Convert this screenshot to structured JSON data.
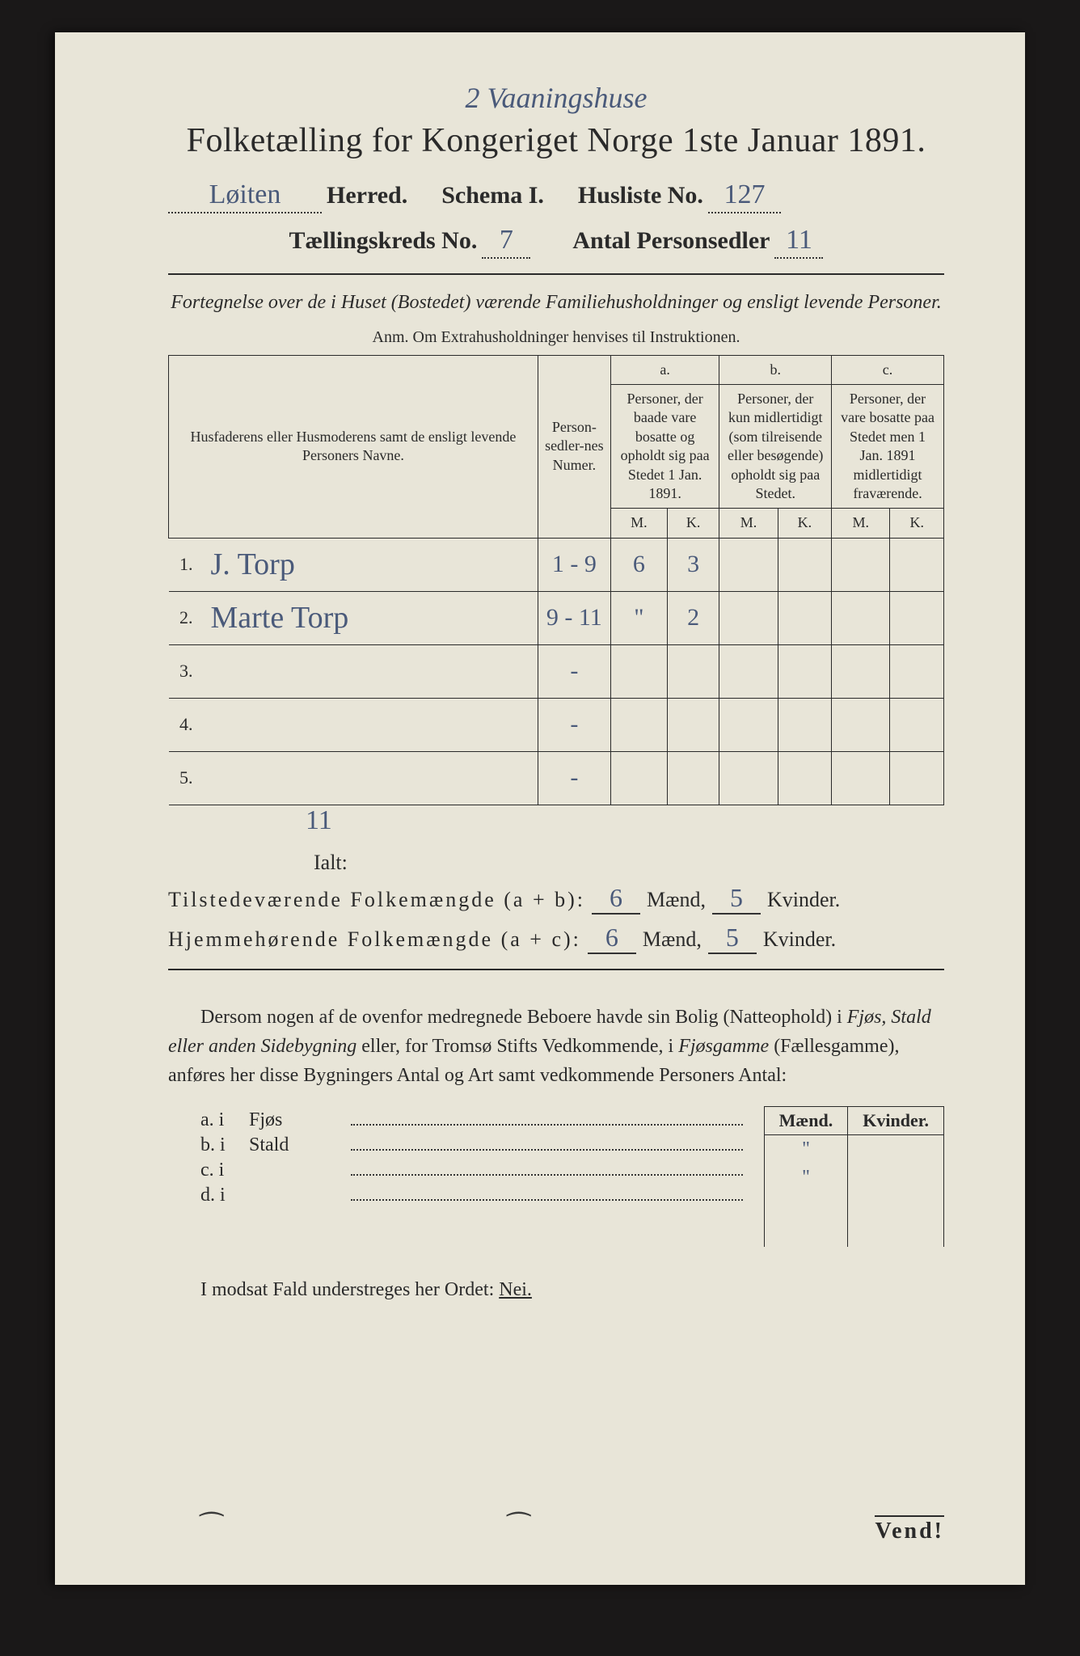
{
  "colors": {
    "paper": "#e8e5d8",
    "ink_print": "#2a2a2a",
    "ink_handwritten": "#4a5a7a",
    "background": "#1a1818"
  },
  "typography": {
    "printed_font": "Georgia serif",
    "handwritten_font": "Brush Script MT cursive",
    "title_size_pt": 42,
    "meta_size_pt": 30,
    "table_header_size_pt": 18,
    "body_size_pt": 24
  },
  "handwritten_top": "2 Vaaningshuse",
  "title": "Folketælling for Kongeriget Norge 1ste Januar 1891.",
  "meta": {
    "herred_value": "Løiten",
    "herred_label": "Herred.",
    "schema_label": "Schema I.",
    "husliste_label": "Husliste No.",
    "husliste_value": "127",
    "kreds_label": "Tællingskreds No.",
    "kreds_value": "7",
    "antal_label": "Antal Personsedler",
    "antal_value": "11"
  },
  "intro_text": "Fortegnelse over de i Huset (Bostedet) værende Familiehusholdninger og ensligt levende Personer.",
  "anm_text": "Anm. Om Extrahusholdninger henvises til Instruktionen.",
  "table": {
    "head_name": "Husfaderens eller Husmoderens samt de ensligt levende Personers Navne.",
    "head_numer": "Person-sedler-nes Numer.",
    "head_a_top": "a.",
    "head_a": "Personer, der baade vare bosatte og opholdt sig paa Stedet 1 Jan. 1891.",
    "head_b_top": "b.",
    "head_b": "Personer, der kun midlertidigt (som tilreisende eller besøgende) opholdt sig paa Stedet.",
    "head_c_top": "c.",
    "head_c": "Personer, der vare bosatte paa Stedet men 1 Jan. 1891 midlertidigt fraværende.",
    "m_label": "M.",
    "k_label": "K.",
    "rows": [
      {
        "n": "1.",
        "name": "J. Torp",
        "numer": "1 - 9",
        "am": "6",
        "ak": "3",
        "bm": "",
        "bk": "",
        "cm": "",
        "ck": ""
      },
      {
        "n": "2.",
        "name": "Marte Torp",
        "numer": "9 - 11",
        "am": "\"",
        "ak": "2",
        "bm": "",
        "bk": "",
        "cm": "",
        "ck": ""
      },
      {
        "n": "3.",
        "name": "",
        "numer": "-",
        "am": "",
        "ak": "",
        "bm": "",
        "bk": "",
        "cm": "",
        "ck": ""
      },
      {
        "n": "4.",
        "name": "",
        "numer": "-",
        "am": "",
        "ak": "",
        "bm": "",
        "bk": "",
        "cm": "",
        "ck": ""
      },
      {
        "n": "5.",
        "name": "",
        "numer": "-",
        "am": "",
        "ak": "",
        "bm": "",
        "bk": "",
        "cm": "",
        "ck": ""
      }
    ]
  },
  "ialt": {
    "label": "Ialt:",
    "total_numer": "11"
  },
  "sums": {
    "line1_label": "Tilstedeværende Folkemængde (a + b):",
    "line1_m": "6",
    "line1_k": "5",
    "line2_label": "Hjemmehørende Folkemængde (a + c):",
    "line2_m": "6",
    "line2_k": "5",
    "maend": "Mænd,",
    "kvinder": "Kvinder."
  },
  "paragraph": {
    "t1": "Dersom nogen af de ovenfor medregnede Beboere havde sin Bolig (Natteophold) i ",
    "i1": "Fjøs, Stald eller anden Sidebygning",
    "t2": " eller, for Tromsø Stifts Vedkommende, i ",
    "i2": "Fjøsgamme",
    "t3": " (Fællesgamme), anføres her disse Bygningers Antal og Art samt vedkommende Personers Antal:"
  },
  "side": {
    "maend_h": "Mænd.",
    "kvinder_h": "Kvinder.",
    "rows": [
      {
        "lbl": "a. i",
        "typ": "Fjøs",
        "m": "\"",
        "k": ""
      },
      {
        "lbl": "b. i",
        "typ": "Stald",
        "m": "\"",
        "k": ""
      },
      {
        "lbl": "c. i",
        "typ": "",
        "m": "",
        "k": ""
      },
      {
        "lbl": "d. i",
        "typ": "",
        "m": "",
        "k": ""
      }
    ]
  },
  "nei_line": {
    "t1": "I modsat Fald understreges her Ordet: ",
    "nei": "Nei."
  },
  "vend": "Vend!"
}
